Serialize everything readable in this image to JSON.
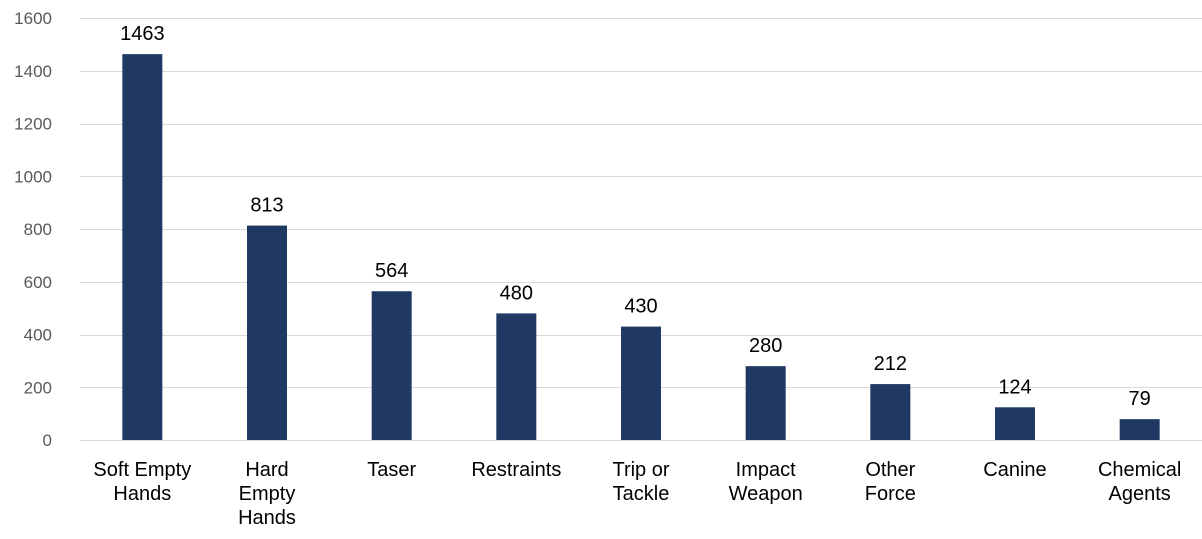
{
  "chart_data": {
    "type": "bar",
    "categories": [
      [
        "Soft Empty",
        "Hands"
      ],
      [
        "Hard",
        "Empty",
        "Hands"
      ],
      [
        "Taser"
      ],
      [
        "Restraints"
      ],
      [
        "Trip or",
        "Tackle"
      ],
      [
        "Impact",
        "Weapon"
      ],
      [
        "Other",
        "Force"
      ],
      [
        "Canine"
      ],
      [
        "Chemical",
        "Agents"
      ]
    ],
    "values": [
      1463,
      813,
      564,
      480,
      430,
      280,
      212,
      124,
      79
    ],
    "ylim": [
      0,
      1600
    ],
    "yticks": [
      0,
      200,
      400,
      600,
      800,
      1000,
      1200,
      1400,
      1600
    ],
    "grid": true,
    "bar_color": "#1f3864",
    "title": "",
    "xlabel": "",
    "ylabel": ""
  }
}
